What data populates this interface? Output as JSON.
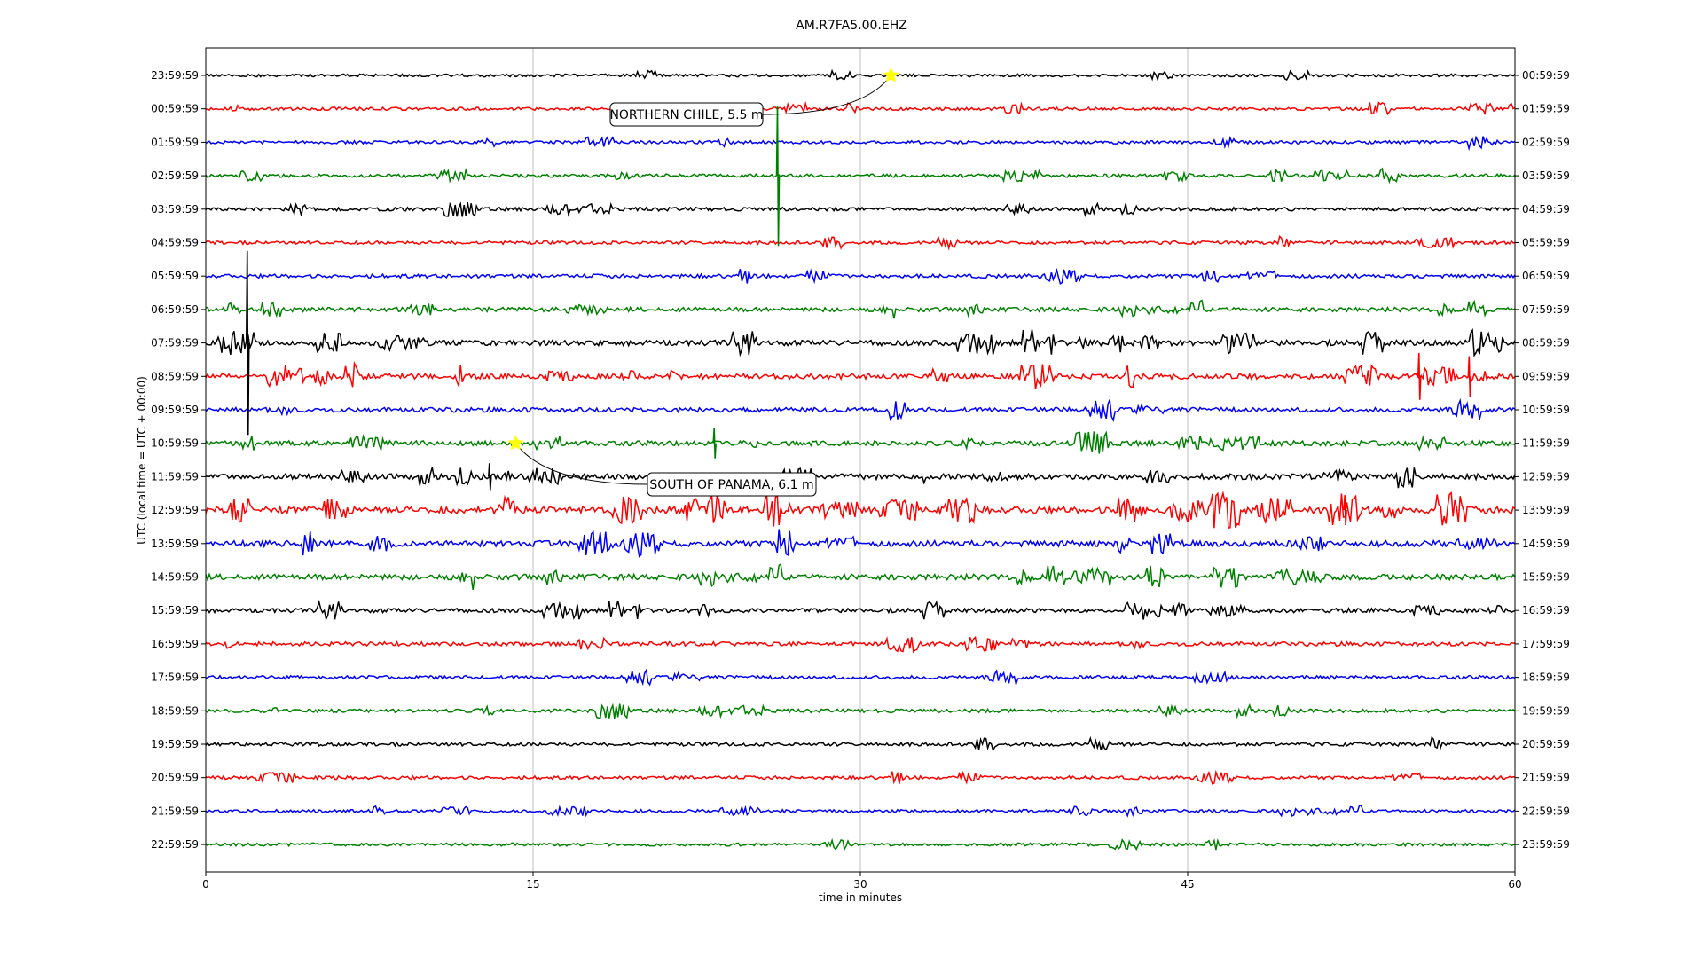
{
  "chart_data": {
    "type": "line",
    "title": "AM.R7FA5.00.EHZ",
    "xlabel": "time in minutes",
    "ylabel": "UTC (local time = UTC + 00:00)",
    "xlim": [
      0,
      60
    ],
    "x_ticks": [
      "0",
      "15",
      "30",
      "45",
      "60"
    ],
    "x_tick_values": [
      0,
      15,
      30,
      45,
      60
    ],
    "grid_x": true,
    "left_labels": [
      "23:59:59",
      "00:59:59",
      "01:59:59",
      "02:59:59",
      "03:59:59",
      "04:59:59",
      "05:59:59",
      "06:59:59",
      "07:59:59",
      "08:59:59",
      "09:59:59",
      "10:59:59",
      "11:59:59",
      "12:59:59",
      "13:59:59",
      "14:59:59",
      "15:59:59",
      "16:59:59",
      "17:59:59",
      "18:59:59",
      "19:59:59",
      "20:59:59",
      "21:59:59",
      "22:59:59"
    ],
    "right_labels": [
      "00:59:59",
      "01:59:59",
      "02:59:59",
      "03:59:59",
      "04:59:59",
      "05:59:59",
      "06:59:59",
      "07:59:59",
      "08:59:59",
      "09:59:59",
      "10:59:59",
      "11:59:59",
      "12:59:59",
      "13:59:59",
      "14:59:59",
      "15:59:59",
      "16:59:59",
      "17:59:59",
      "18:59:59",
      "19:59:59",
      "20:59:59",
      "21:59:59",
      "22:59:59",
      "23:59:59"
    ],
    "trace_colors": [
      "#000000",
      "#ff0000",
      "#0000ff",
      "#008000"
    ],
    "trace_amplitude_level": [
      0.15,
      0.2,
      0.2,
      0.25,
      0.3,
      0.25,
      0.35,
      0.45,
      0.7,
      0.65,
      0.55,
      0.6,
      0.75,
      1.0,
      0.8,
      0.75,
      0.45,
      0.4,
      0.3,
      0.3,
      0.3,
      0.25,
      0.2,
      0.2
    ],
    "events": [
      {
        "label": "NORTHERN CHILE, 5.5 m",
        "trace": 0,
        "minute": 31.4,
        "marker_color": "#ffff00"
      },
      {
        "label": "SOUTH OF PANAMA, 6.1 m",
        "trace": 11,
        "minute": 14.2,
        "marker_color": "#ffff00"
      }
    ],
    "spikes": [
      {
        "trace": 3,
        "minute": 26.2,
        "height": 4.2
      },
      {
        "trace": 8,
        "minute": 1.9,
        "height": 5.5
      },
      {
        "trace": 9,
        "minute": 55.6,
        "height": 1.4
      },
      {
        "trace": 9,
        "minute": 57.9,
        "height": 1.2
      },
      {
        "trace": 11,
        "minute": 23.3,
        "height": 0.9
      },
      {
        "trace": 12,
        "minute": 13.0,
        "height": 0.8
      },
      {
        "trace": 13,
        "minute": 52.2,
        "height": 0.9
      }
    ]
  }
}
